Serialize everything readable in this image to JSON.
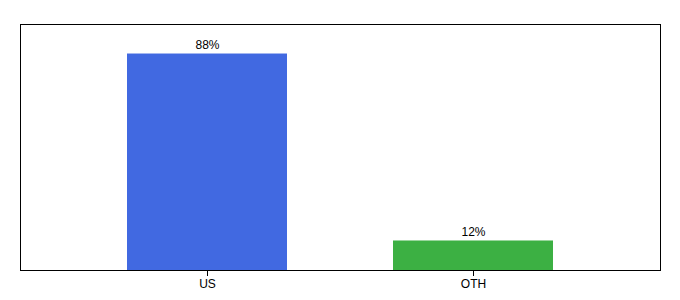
{
  "chart_data": {
    "type": "bar",
    "categories": [
      "US",
      "OTH"
    ],
    "values": [
      88,
      12
    ],
    "value_labels": [
      "88%",
      "12%"
    ],
    "colors": [
      "#4169e1",
      "#3cb043"
    ],
    "ylim": [
      0,
      100
    ],
    "data_labels": true,
    "tick_labels": "x"
  }
}
